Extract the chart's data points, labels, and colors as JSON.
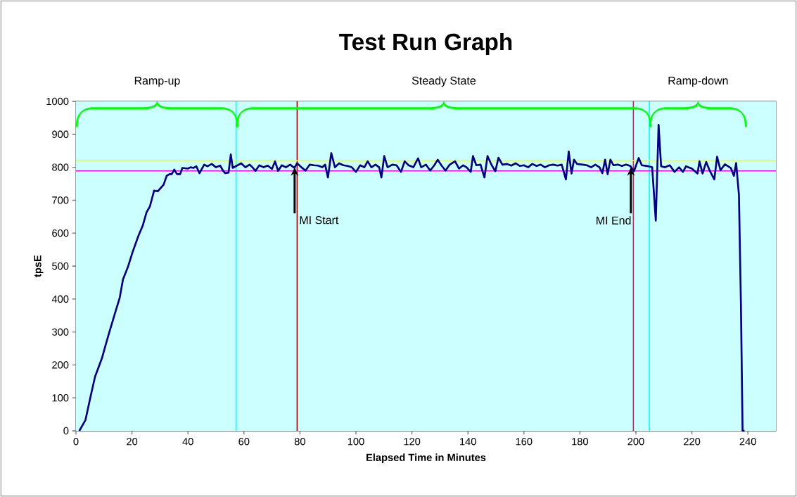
{
  "chart_data": {
    "type": "line",
    "title": "Test Run Graph",
    "xlabel": "Elapsed Time in Minutes",
    "ylabel": "tpsE",
    "xlim": [
      0,
      250
    ],
    "ylim": [
      0,
      1000
    ],
    "xticks": [
      0,
      20,
      40,
      60,
      80,
      100,
      120,
      140,
      160,
      180,
      200,
      220,
      240
    ],
    "yticks": [
      0,
      100,
      200,
      300,
      400,
      500,
      600,
      700,
      800,
      900,
      1000
    ],
    "grid": "y",
    "marker": "none",
    "line_style": "solid",
    "series": [
      {
        "color": "#000080",
        "x": [
          1.2,
          3.4,
          5.1,
          6.8,
          9.3,
          10.6,
          11.8,
          14.3,
          15.6,
          16.8,
          18.5,
          20.2,
          22.3,
          23.9,
          25.2,
          26.4,
          27.9,
          29.2,
          31.3,
          32.4,
          33.4,
          34.2,
          35.1,
          36.1,
          37.2,
          38.0,
          39.9,
          40.9,
          42,
          43,
          44.1,
          45.8,
          47,
          48.5,
          50,
          51.5,
          52.5,
          53.3,
          54.5,
          55.3,
          56,
          57.5,
          59,
          60.5,
          62,
          63,
          64.1,
          65.5,
          67,
          68.5,
          70,
          71.1,
          72.2,
          73.5,
          75,
          76.5,
          78,
          79,
          80.5,
          82,
          83.5,
          85,
          86.5,
          88,
          89,
          90,
          91.2,
          92.5,
          94,
          95.5,
          97,
          98.5,
          100,
          101.5,
          103,
          104.2,
          105.5,
          107,
          108.3,
          109.1,
          110.1,
          111.3,
          113,
          114.5,
          116.1,
          117.4,
          118.8,
          120.5,
          122.2,
          123.3,
          125,
          126.5,
          128,
          129.2,
          130.5,
          132,
          133.5,
          135.4,
          136.8,
          138.3,
          139.5,
          141,
          141.8,
          143,
          144.5,
          145.9,
          147,
          148.5,
          149.8,
          150.9,
          152.3,
          154,
          155.5,
          157,
          158.5,
          160,
          161.5,
          163,
          164.5,
          166,
          167.5,
          169,
          170.5,
          172,
          173.5,
          175,
          176,
          177,
          177.9,
          179,
          181,
          182.5,
          184,
          185.5,
          187,
          188,
          189,
          189.9,
          190.9,
          192,
          193.5,
          195,
          196.5,
          198,
          199.3,
          201,
          202.1,
          204.5,
          205.8,
          207.1,
          208.1,
          209,
          210.4,
          212.1,
          213.8,
          215.4,
          216.8,
          217.9,
          220,
          222,
          222.7,
          223.8,
          225.1,
          226.3,
          228,
          229,
          230.2,
          231.8,
          233.9,
          235,
          235.8,
          236.8,
          237.5,
          238.1,
          238.8
        ],
        "values": [
          0,
          33,
          100,
          164,
          221,
          261,
          296,
          367,
          403,
          460,
          496,
          542,
          592,
          624,
          663,
          681,
          729,
          727,
          747,
          774,
          779,
          779,
          793,
          779,
          779,
          798,
          796,
          800,
          798,
          803,
          782,
          808,
          803,
          810,
          800,
          805,
          790,
          782,
          784,
          839,
          798,
          805,
          812,
          800,
          808,
          800,
          789,
          806,
          800,
          805,
          795,
          818,
          789,
          806,
          800,
          808,
          798,
          812,
          800,
          790,
          808,
          806,
          805,
          800,
          808,
          769,
          843,
          800,
          812,
          806,
          804,
          800,
          786,
          806,
          800,
          818,
          800,
          808,
          800,
          769,
          834,
          800,
          808,
          806,
          786,
          818,
          806,
          800,
          827,
          800,
          808,
          790,
          806,
          823,
          806,
          790,
          808,
          818,
          796,
          806,
          800,
          786,
          834,
          806,
          808,
          769,
          834,
          806,
          788,
          829,
          808,
          810,
          805,
          812,
          804,
          806,
          800,
          810,
          804,
          808,
          800,
          806,
          808,
          805,
          808,
          763,
          848,
          781,
          823,
          810,
          808,
          806,
          800,
          808,
          800,
          782,
          823,
          779,
          823,
          806,
          808,
          804,
          808,
          804,
          788,
          828,
          806,
          803,
          800,
          638,
          929,
          803,
          800,
          806,
          786,
          800,
          786,
          803,
          796,
          781,
          818,
          781,
          816,
          791,
          763,
          832,
          791,
          809,
          798,
          774,
          813,
          716,
          389,
          0,
          0
        ]
      }
    ],
    "ref_lines": [
      {
        "axis": "x",
        "value": 57.2,
        "color": "#00ffff"
      },
      {
        "axis": "x",
        "value": 204.8,
        "color": "#00ffff"
      },
      {
        "axis": "x",
        "value": 79,
        "label": "MI Start",
        "color": "#990000"
      },
      {
        "axis": "x",
        "value": 199.1,
        "label": "MI End",
        "color": "#993366"
      },
      {
        "axis": "y",
        "value": 821,
        "color": "#ffff00"
      },
      {
        "axis": "y",
        "value": 789,
        "color": "#ff00ff"
      }
    ],
    "annotations": [
      "Ramp-up",
      "Steady State",
      "Ramp-down"
    ]
  }
}
